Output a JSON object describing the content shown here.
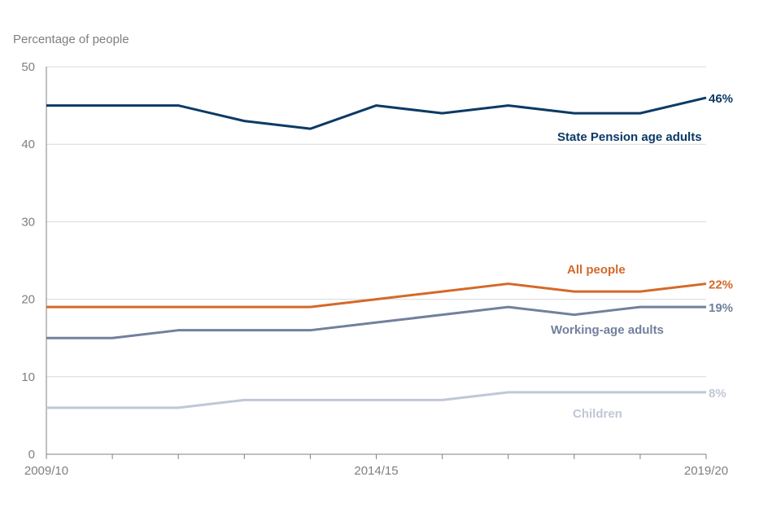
{
  "chart_data": {
    "type": "line",
    "title": "",
    "ylabel": "Percentage of people",
    "xlabel": "",
    "ylim": [
      0,
      50
    ],
    "yticks": [
      0,
      10,
      20,
      30,
      40,
      50
    ],
    "x": [
      "2009/10",
      "2010/11",
      "2011/12",
      "2012/13",
      "2013/14",
      "2014/15",
      "2015/16",
      "2016/17",
      "2017/18",
      "2018/19",
      "2019/20"
    ],
    "xtick_labels": [
      "2009/10",
      "",
      "",
      "",
      "",
      "2014/15",
      "",
      "",
      "",
      "",
      "2019/20"
    ],
    "grid": true,
    "series": [
      {
        "name": "State Pension age adults",
        "color": "#0b3a66",
        "values": [
          45,
          45,
          45,
          43,
          42,
          45,
          44,
          45,
          44,
          44,
          46
        ],
        "end_label": "46%"
      },
      {
        "name": "All people",
        "color": "#d4692a",
        "values": [
          19,
          19,
          19,
          19,
          19,
          20,
          21,
          22,
          21,
          21,
          22
        ],
        "end_label": "22%"
      },
      {
        "name": "Working-age adults",
        "color": "#72809c",
        "values": [
          15,
          15,
          16,
          16,
          16,
          17,
          18,
          19,
          18,
          19,
          19
        ],
        "end_label": "19%"
      },
      {
        "name": "Children",
        "color": "#c0c7d6",
        "values": [
          6,
          6,
          6,
          7,
          7,
          7,
          7,
          8,
          8,
          8,
          8
        ],
        "end_label": "8%"
      }
    ]
  }
}
